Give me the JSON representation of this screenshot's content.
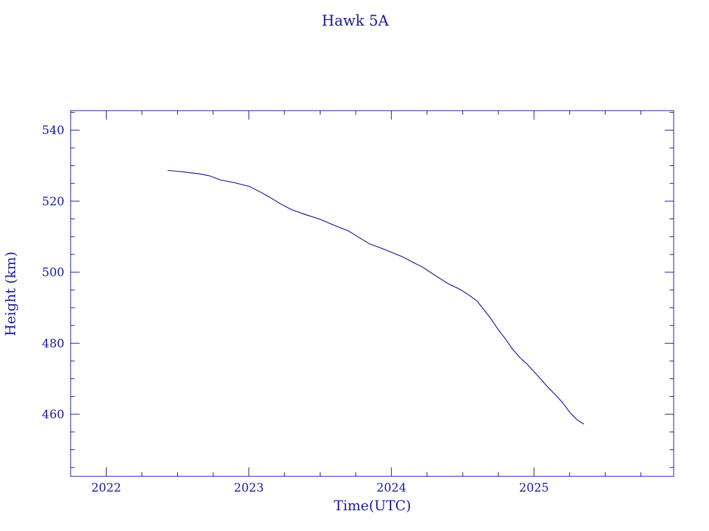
{
  "chart_data": {
    "type": "line",
    "title": "Hawk 5A",
    "xlabel": "Time(UTC)",
    "ylabel": "Height (km)",
    "xlim": [
      2021.75,
      2025.98
    ],
    "ylim": [
      442.5,
      545.5
    ],
    "x_ticks": [
      2022,
      2023,
      2024,
      2025
    ],
    "x_tick_labels": [
      "2022",
      "2023",
      "2024",
      "2025"
    ],
    "y_ticks": [
      460,
      480,
      500,
      520,
      540
    ],
    "y_tick_labels": [
      "460",
      "480",
      "500",
      "520",
      "540"
    ],
    "x_minor_step": 0.25,
    "y_minor_step": 5,
    "grid": false,
    "series": [
      {
        "color": "#1a1a96",
        "x": [
          2022.43,
          2022.55,
          2022.65,
          2022.72,
          2022.8,
          2022.9,
          2023.0,
          2023.08,
          2023.15,
          2023.22,
          2023.3,
          2023.4,
          2023.5,
          2023.6,
          2023.7,
          2023.78,
          2023.85,
          2023.92,
          2024.0,
          2024.08,
          2024.15,
          2024.22,
          2024.28,
          2024.33,
          2024.4,
          2024.48,
          2024.55,
          2024.6,
          2024.65,
          2024.7,
          2024.75,
          2024.8,
          2024.85,
          2024.9,
          2024.95,
          2025.0,
          2025.05,
          2025.1,
          2025.15,
          2025.2,
          2025.25,
          2025.3,
          2025.35
        ],
        "y": [
          528.7,
          528.2,
          527.7,
          527.2,
          526.0,
          525.2,
          524.2,
          522.6,
          521.0,
          519.3,
          517.6,
          516.2,
          514.9,
          513.2,
          511.6,
          509.6,
          507.9,
          506.9,
          505.6,
          504.3,
          502.8,
          501.4,
          499.8,
          498.5,
          496.7,
          495.2,
          493.4,
          491.9,
          489.4,
          486.8,
          483.8,
          481.2,
          478.3,
          476.0,
          474.2,
          472.0,
          469.8,
          467.5,
          465.5,
          463.3,
          460.6,
          458.5,
          457.2
        ]
      }
    ]
  }
}
